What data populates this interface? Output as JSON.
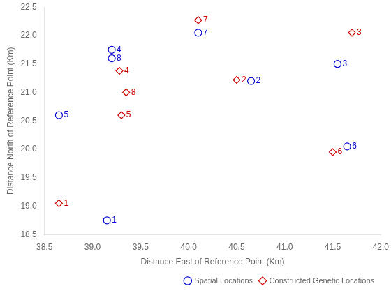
{
  "chart_data": {
    "type": "scatter",
    "xlabel": "Distance East of Reference Point (Km)",
    "ylabel": "Distance North of Reference Point (Km)",
    "series": [
      {
        "name": "Spatial Locations",
        "color": "#0000cd",
        "marker": "circle",
        "x": [
          38.65,
          39.15,
          40.65,
          39.2,
          41.55,
          41.65,
          40.1,
          39.2
        ],
        "values": [
          20.6,
          18.75,
          21.2,
          21.75,
          21.5,
          20.05,
          22.05,
          21.6
        ],
        "labels": [
          "5",
          "1",
          "2",
          "4",
          "3",
          "6",
          "7",
          "8"
        ]
      },
      {
        "name": "Constructed Genetic Locations",
        "color": "#cd0000",
        "marker": "diamond",
        "x": [
          38.65,
          41.7,
          39.28,
          39.3,
          41.5,
          40.1,
          39.35,
          40.5
        ],
        "values": [
          19.05,
          22.05,
          21.38,
          20.6,
          19.95,
          22.27,
          21.0,
          21.22
        ],
        "labels": [
          "1",
          "3",
          "4",
          "5",
          "6",
          "7",
          "8",
          "2"
        ]
      }
    ],
    "xlim": [
      38.5,
      42.0
    ],
    "ylim": [
      18.5,
      22.5
    ],
    "xticks": [
      38.5,
      {
        "value": 39,
        "label": "39.0"
      },
      39.5,
      {
        "value": 40,
        "label": "40.0"
      },
      40.5,
      {
        "value": 41,
        "label": "41.0"
      },
      41.5,
      {
        "value": 42,
        "label": "42.0"
      }
    ],
    "yticks": [
      18.5,
      {
        "value": 19,
        "label": "19.0"
      },
      19.5,
      {
        "value": 20,
        "label": "20.0"
      },
      20.5,
      {
        "value": 21,
        "label": "21.0"
      },
      21.5,
      {
        "value": 22,
        "label": "22.0"
      },
      22.5
    ],
    "grid": false,
    "legend": "lower right"
  }
}
